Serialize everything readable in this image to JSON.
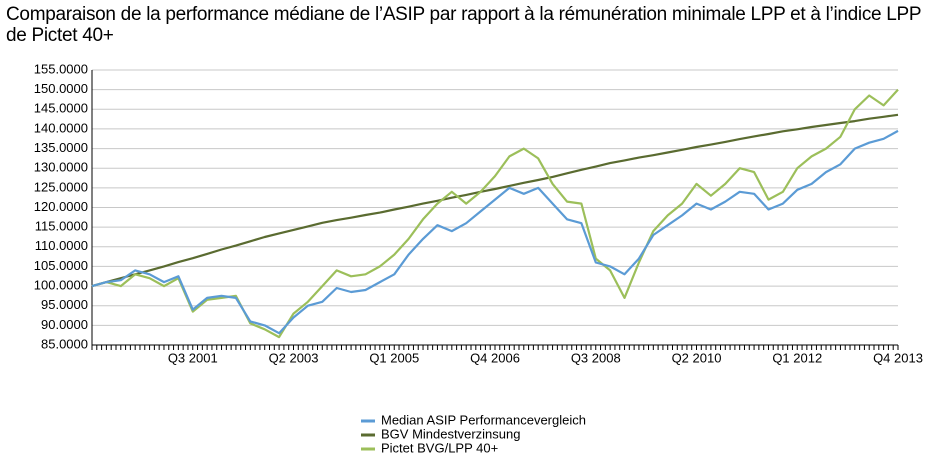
{
  "chart_data": {
    "type": "line",
    "title": "Comparaison de la performance médiane de l’ASIP par rapport à la rémunération minimale LPP et à l’indice LPP de Pictet 40+",
    "categories": [
      null,
      null,
      null,
      null,
      null,
      null,
      null,
      "Q3 2001",
      null,
      null,
      null,
      null,
      null,
      null,
      "Q2 2003",
      null,
      null,
      null,
      null,
      null,
      null,
      "Q1 2005",
      null,
      null,
      null,
      null,
      null,
      null,
      "Q4 2006",
      null,
      null,
      null,
      null,
      null,
      null,
      "Q3 2008",
      null,
      null,
      null,
      null,
      null,
      null,
      "Q2 2010",
      null,
      null,
      null,
      null,
      null,
      null,
      "Q1 2012",
      null,
      null,
      null,
      null,
      null,
      null,
      "Q4 2013"
    ],
    "series": [
      {
        "name": "Median ASIP Performancevergleich",
        "color": "#5b9bd5",
        "values": [
          100,
          101,
          101.5,
          104,
          103,
          101,
          102.5,
          94,
          97,
          97.5,
          97,
          91,
          90,
          88,
          92,
          95,
          96,
          99.5,
          98.5,
          99,
          101,
          103,
          108,
          112,
          115.5,
          114,
          116,
          119,
          122,
          125,
          123.5,
          125,
          121,
          117,
          116,
          106,
          105,
          103,
          107,
          113,
          115.5,
          118,
          121,
          119.5,
          121.5,
          124,
          123.5,
          119.5,
          121,
          124.5,
          126,
          129,
          131,
          135,
          136.5,
          137.5,
          139.5
        ]
      },
      {
        "name": "BGV Mindestverzinsung",
        "color": "#5a6b30",
        "values": [
          100,
          101,
          102,
          103,
          104,
          105,
          106.1,
          107.1,
          108.2,
          109.3,
          110.3,
          111.4,
          112.5,
          113.4,
          114.3,
          115.2,
          116.1,
          116.8,
          117.4,
          118.1,
          118.7,
          119.5,
          120.2,
          121,
          121.7,
          122.5,
          123.2,
          124,
          124.7,
          125.5,
          126.3,
          127,
          127.8,
          128.7,
          129.6,
          130.4,
          131.3,
          132,
          132.7,
          133.3,
          134,
          134.7,
          135.4,
          136,
          136.7,
          137.4,
          138.1,
          138.7,
          139.4,
          139.9,
          140.5,
          141,
          141.5,
          142,
          142.6,
          143.1,
          143.6
        ]
      },
      {
        "name": "Pictet BVG/LPP 40+",
        "color": "#9cbf5a",
        "values": [
          100,
          101,
          100,
          103,
          102,
          100,
          102,
          93.5,
          96.5,
          97,
          97.5,
          90.5,
          89,
          87,
          93,
          96,
          100,
          104,
          102.5,
          103,
          105,
          108,
          112,
          117,
          121,
          124,
          121,
          124,
          128,
          133,
          135,
          132.5,
          126,
          121.5,
          121,
          107,
          104,
          97,
          106,
          114,
          118,
          121,
          126,
          123,
          126,
          130,
          129,
          122,
          124,
          130,
          133,
          135,
          138,
          145,
          148.5,
          146,
          150
        ]
      }
    ],
    "ylim": [
      85,
      155
    ],
    "yticks": [
      {
        "value": 85,
        "label": "85.0000"
      },
      {
        "value": 90,
        "label": "90.0000"
      },
      {
        "value": 95,
        "label": "95.0000"
      },
      {
        "value": 100,
        "label": "100.0000"
      },
      {
        "value": 105,
        "label": "105.0000"
      },
      {
        "value": 110,
        "label": "110.0000"
      },
      {
        "value": 115,
        "label": "115.0000"
      },
      {
        "value": 120,
        "label": "120.0000"
      },
      {
        "value": 125,
        "label": "125.0000"
      },
      {
        "value": 130,
        "label": "130.0000"
      },
      {
        "value": 135,
        "label": "135.0000"
      },
      {
        "value": 140,
        "label": "140.0000"
      },
      {
        "value": 145,
        "label": "145.0000"
      },
      {
        "value": 150,
        "label": "150.0000"
      },
      {
        "value": 155,
        "label": "155.0000"
      }
    ],
    "grid": true
  }
}
